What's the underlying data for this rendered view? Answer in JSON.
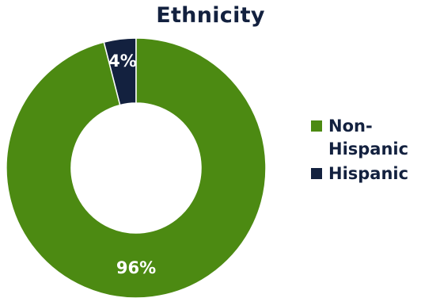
{
  "chart_data": {
    "type": "pie",
    "title": "Ethnicity",
    "slices": [
      {
        "label": "Non-Hispanic",
        "value": 96,
        "display": "96%",
        "color": "#4c8a12"
      },
      {
        "label": "Hispanic",
        "value": 4,
        "display": "4%",
        "color": "#13213f"
      }
    ],
    "legend": {
      "placement": "right",
      "entries": [
        "Non-Hispanic",
        "Hispanic"
      ]
    }
  }
}
